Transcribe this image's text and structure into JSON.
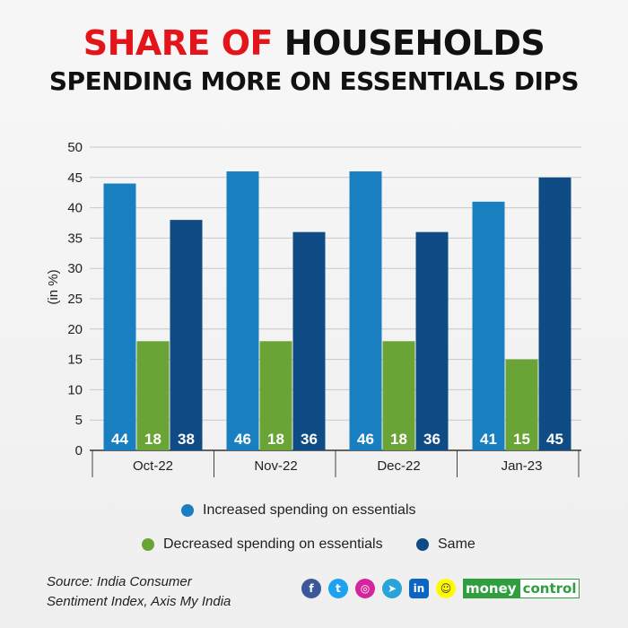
{
  "header": {
    "title_highlight": "SHARE OF",
    "title_rest": " HOUSEHOLDS",
    "subtitle": "SPENDING MORE ON ESSENTIALS DIPS"
  },
  "colors": {
    "title_red": "#e3151b",
    "increased": "#1a7fc1",
    "decreased": "#6aa336",
    "same": "#0f4c85"
  },
  "chart_data": {
    "type": "bar",
    "title": "SHARE OF HOUSEHOLDS SPENDING MORE ON ESSENTIALS DIPS",
    "ylabel": "(in %)",
    "xlabel": "",
    "ylim": [
      0,
      50
    ],
    "yticks": [
      0,
      5,
      10,
      15,
      20,
      25,
      30,
      35,
      40,
      45,
      50
    ],
    "categories": [
      "Oct-22",
      "Nov-22",
      "Dec-22",
      "Jan-23"
    ],
    "series": [
      {
        "name": "Increased spending on essentials",
        "values": [
          44,
          46,
          46,
          41
        ]
      },
      {
        "name": "Decreased spending on essentials",
        "values": [
          18,
          18,
          18,
          15
        ]
      },
      {
        "name": "Same",
        "values": [
          38,
          36,
          36,
          45
        ]
      }
    ],
    "grid": true,
    "legend_position": "bottom"
  },
  "legend": {
    "increased": "Increased spending on essentials",
    "decreased": "Decreased spending on essentials",
    "same": "Same"
  },
  "source": {
    "line1": "Source: India Consumer",
    "line2": "Sentiment Index, Axis My India"
  },
  "social_icons": [
    "facebook-icon",
    "twitter-icon",
    "instagram-icon",
    "telegram-icon",
    "linkedin-icon",
    "snapchat-icon"
  ],
  "brand": {
    "part1": "money",
    "part2": "control"
  }
}
